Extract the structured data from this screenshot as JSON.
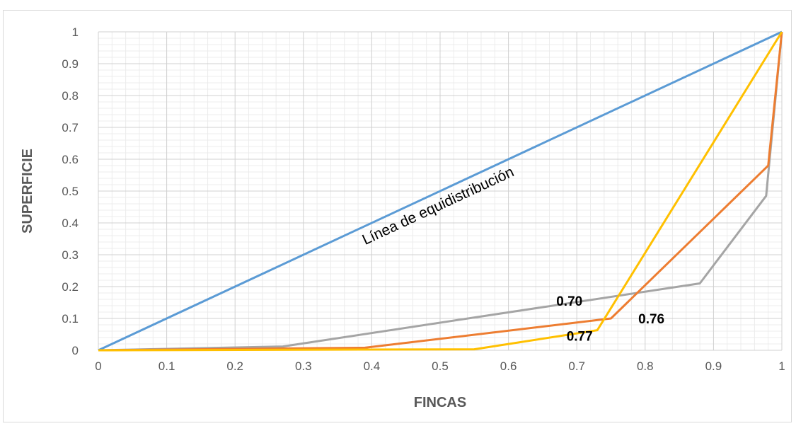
{
  "chart_data": {
    "type": "line",
    "title": "",
    "xlabel": "FINCAS",
    "ylabel": "SUPERFICIE",
    "xlim": [
      0,
      1
    ],
    "ylim": [
      0,
      1
    ],
    "x_ticks": [
      "0",
      "0.1",
      "0.2",
      "0.3",
      "0.4",
      "0.5",
      "0.6",
      "0.7",
      "0.8",
      "0.9",
      "1"
    ],
    "y_ticks": [
      "0",
      "0.1",
      "0.2",
      "0.3",
      "0.4",
      "0.5",
      "0.6",
      "0.7",
      "0.8",
      "0.9",
      "1"
    ],
    "grid": true,
    "legend": "none",
    "series": [
      {
        "color": "#5b9bd5",
        "points": [
          [
            0,
            0
          ],
          [
            1,
            1
          ]
        ]
      },
      {
        "color": "#a5a5a5",
        "points": [
          [
            0,
            0
          ],
          [
            0.27,
            0.012
          ],
          [
            0.88,
            0.21
          ],
          [
            0.977,
            0.485
          ],
          [
            1,
            1
          ]
        ]
      },
      {
        "color": "#ed7d31",
        "points": [
          [
            0,
            0
          ],
          [
            0.39,
            0.008
          ],
          [
            0.75,
            0.1
          ],
          [
            0.98,
            0.58
          ],
          [
            1,
            1
          ]
        ]
      },
      {
        "color": "#ffc000",
        "points": [
          [
            0,
            0
          ],
          [
            0.55,
            0.003
          ],
          [
            0.73,
            0.063
          ],
          [
            1,
            1
          ]
        ]
      }
    ],
    "annotations": [
      {
        "text": "Línea de equidistribución",
        "x": 0.5,
        "y": 0.44,
        "angle_follows": "diagonal"
      },
      {
        "text": "0.70",
        "x": 0.67,
        "y": 0.14
      },
      {
        "text": "0.76",
        "x": 0.79,
        "y": 0.085
      },
      {
        "text": "0.77",
        "x": 0.685,
        "y": 0.03
      }
    ]
  }
}
